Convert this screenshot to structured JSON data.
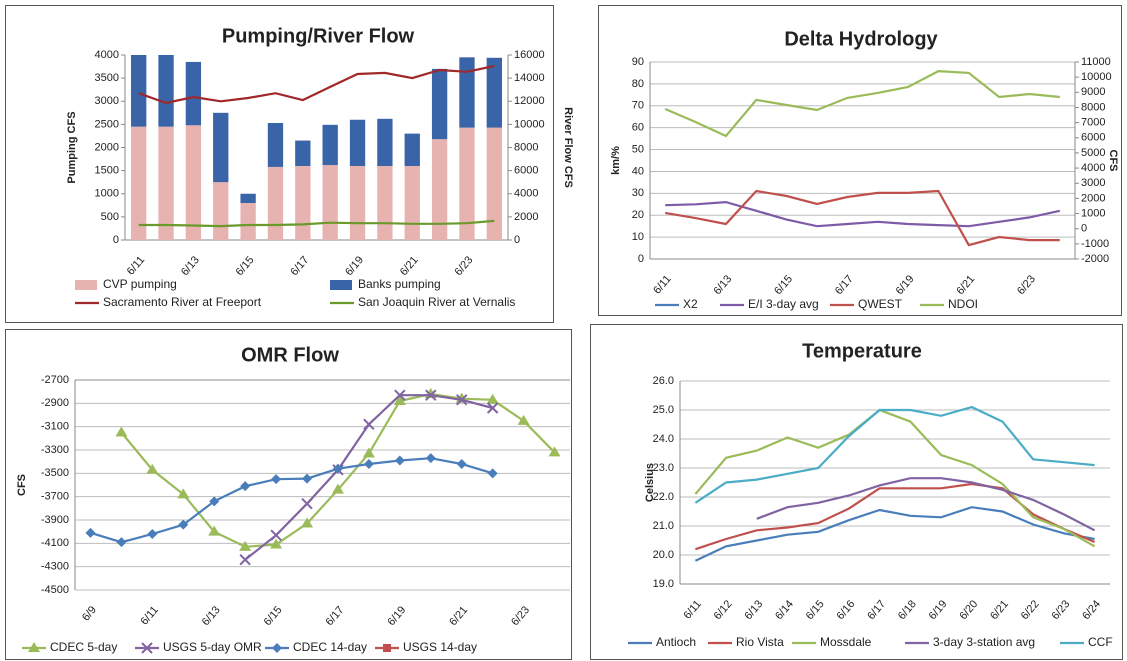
{
  "chart_data": [
    {
      "type": "bar",
      "title": "Pumping/River Flow",
      "ylabel": "Pumping CFS",
      "y2label": "River Flow CFS",
      "grid": false,
      "categories": [
        "6/11",
        null,
        "6/13",
        null,
        "6/15",
        null,
        "6/17",
        null,
        "6/19",
        null,
        "6/21",
        null,
        "6/23",
        null
      ],
      "ylim": [
        0,
        4000
      ],
      "yticks": [
        0,
        500,
        1000,
        1500,
        2000,
        2500,
        3000,
        3500,
        4000
      ],
      "y2lim": [
        0,
        16000
      ],
      "y2ticks": [
        0,
        2000,
        4000,
        6000,
        8000,
        10000,
        12000,
        14000,
        16000
      ],
      "series": [
        {
          "name": "CVP pumping",
          "type": "bar",
          "color": "#e6b3b1",
          "values": [
            2450,
            2450,
            2480,
            1250,
            800,
            1580,
            1600,
            1620,
            1600,
            1600,
            1600,
            2180,
            2430,
            2430
          ]
        },
        {
          "name": "Banks pumping",
          "type": "bar",
          "color": "#3a64a8",
          "values": [
            1550,
            1550,
            1370,
            1500,
            200,
            950,
            550,
            870,
            1000,
            1020,
            700,
            1520,
            1520,
            1510
          ]
        },
        {
          "name": "Sacramento River at Freeport",
          "type": "line",
          "axis": "y2",
          "color": "#a0282a",
          "values": [
            12700,
            11850,
            12370,
            12000,
            12280,
            12700,
            12100,
            13240,
            14360,
            14450,
            14000,
            14700,
            14550,
            15050
          ]
        },
        {
          "name": "San Joaquin River at Vernalis",
          "type": "line",
          "axis": "y2",
          "color": "#6a9a2a",
          "values": [
            1300,
            1300,
            1250,
            1200,
            1300,
            1300,
            1350,
            1500,
            1450,
            1450,
            1400,
            1400,
            1450,
            1650
          ]
        }
      ]
    },
    {
      "type": "line",
      "title": "Delta Hydrology",
      "ylabel": "km/%",
      "y2label": "CFS",
      "grid": true,
      "categories": [
        "6/11",
        null,
        "6/13",
        null,
        "6/15",
        null,
        "6/17",
        null,
        "6/19",
        null,
        "6/21",
        null,
        "6/23",
        null
      ],
      "ylim": [
        0,
        90
      ],
      "yticks": [
        0,
        10,
        20,
        30,
        40,
        50,
        60,
        70,
        80,
        90
      ],
      "y2lim": [
        -2000,
        11000
      ],
      "y2ticks": [
        -2000,
        -1000,
        0,
        1000,
        2000,
        3000,
        4000,
        5000,
        6000,
        7000,
        8000,
        9000,
        10000,
        11000
      ],
      "series": [
        {
          "name": "X2",
          "type": "line",
          "color": "#4a7ebb",
          "values": [
            null,
            null,
            null,
            null,
            null,
            null,
            null,
            null,
            null,
            null,
            null,
            null,
            null,
            null
          ]
        },
        {
          "name": "E/I 3-day avg",
          "type": "line",
          "color": "#7d5ba6",
          "values": [
            24.6,
            25,
            26,
            22,
            18,
            15,
            16,
            17,
            16,
            15.5,
            15,
            17,
            19,
            22
          ]
        },
        {
          "name": "QWEST",
          "type": "line",
          "axis": "y2",
          "color": "#c0504d",
          "values": [
            1040,
            700,
            310,
            2490,
            2160,
            1630,
            2090,
            2360,
            2360,
            2490,
            -1080,
            -550,
            -750,
            -750
          ]
        },
        {
          "name": "NDOI",
          "type": "line",
          "axis": "y2",
          "color": "#9bbb59",
          "values": [
            7900,
            7040,
            6120,
            8500,
            8160,
            7830,
            8630,
            8960,
            9350,
            10400,
            10280,
            8690,
            8890,
            8690
          ]
        }
      ]
    },
    {
      "type": "line",
      "title": "OMR Flow",
      "ylabel": "CFS",
      "grid": true,
      "categories": [
        "6/9",
        null,
        "6/11",
        null,
        "6/13",
        null,
        "6/15",
        null,
        "6/17",
        null,
        "6/19",
        null,
        "6/21",
        null,
        "6/23",
        null
      ],
      "ylim": [
        -4500,
        -2700
      ],
      "yticks": [
        -4500,
        -4300,
        -4100,
        -3900,
        -3700,
        -3500,
        -3300,
        -3100,
        -2900,
        -2700
      ],
      "series": [
        {
          "name": "CDEC 5-day",
          "type": "line",
          "marker": "triangle",
          "color": "#9bbb59",
          "values": [
            null,
            -3150,
            -3470,
            -3680,
            -4000,
            -4130,
            -4110,
            -3930,
            -3640,
            -3330,
            -2880,
            -2820,
            -2860,
            -2870,
            -3050,
            -3320
          ]
        },
        {
          "name": "USGS 5-day OMR",
          "type": "line",
          "marker": "cross",
          "color": "#8064a2",
          "values": [
            null,
            null,
            null,
            null,
            null,
            -4240,
            -4030,
            -3760,
            -3470,
            -3080,
            -2830,
            -2830,
            -2870,
            -2940,
            null,
            null
          ]
        },
        {
          "name": "CDEC 14-day",
          "type": "line",
          "marker": "diamond",
          "color": "#4a7ebb",
          "values": [
            -4010,
            -4090,
            -4020,
            -3940,
            -3740,
            -3610,
            -3550,
            -3545,
            -3460,
            -3420,
            -3390,
            -3370,
            -3420,
            -3500,
            null,
            null
          ]
        },
        {
          "name": "USGS 14-day",
          "type": "line",
          "marker": "square",
          "color": "#c0504d",
          "values": [
            null,
            null,
            null,
            null,
            null,
            null,
            null,
            null,
            null,
            null,
            null,
            null,
            null,
            null,
            null,
            null
          ]
        }
      ]
    },
    {
      "type": "line",
      "title": "Temperature",
      "ylabel": "Celsius",
      "grid": true,
      "categories": [
        "6/11",
        "6/12",
        "6/13",
        "6/14",
        "6/15",
        "6/16",
        "6/17",
        "6/18",
        "6/19",
        "6/20",
        "6/21",
        "6/22",
        "6/23",
        "6/24"
      ],
      "ylim": [
        19,
        26
      ],
      "yticks": [
        {
          "value": 19,
          "label": "19.0"
        },
        {
          "value": 20,
          "label": "20.0"
        },
        {
          "value": 21,
          "label": "21.0"
        },
        {
          "value": 22,
          "label": "22.0"
        },
        {
          "value": 23,
          "label": "23.0"
        },
        {
          "value": 24,
          "label": "24.0"
        },
        {
          "value": 25,
          "label": "25.0"
        },
        {
          "value": 26,
          "label": "26.0"
        }
      ],
      "series": [
        {
          "name": "Antioch",
          "type": "line",
          "color": "#4a7ebb",
          "values": [
            19.8,
            20.3,
            20.5,
            20.7,
            20.8,
            21.2,
            21.55,
            21.35,
            21.3,
            21.65,
            21.5,
            21.05,
            20.75,
            20.55
          ]
        },
        {
          "name": "Rio Vista",
          "type": "line",
          "color": "#c0504d",
          "values": [
            20.2,
            20.55,
            20.85,
            20.95,
            21.1,
            21.6,
            22.3,
            22.3,
            22.3,
            22.45,
            22.3,
            21.4,
            20.9,
            20.45
          ]
        },
        {
          "name": "Mossdale",
          "type": "line",
          "color": "#9bbb59",
          "values": [
            22.1,
            23.35,
            23.6,
            24.05,
            23.7,
            24.15,
            25.0,
            24.6,
            23.45,
            23.1,
            22.45,
            21.3,
            20.9,
            20.3
          ]
        },
        {
          "name": "3-day 3-station avg",
          "type": "line",
          "color": "#8064a2",
          "values": [
            null,
            null,
            21.25,
            21.65,
            21.8,
            22.05,
            22.4,
            22.65,
            22.65,
            22.5,
            22.25,
            21.9,
            21.4,
            20.85
          ]
        },
        {
          "name": "CCF",
          "type": "line",
          "color": "#4bacc6",
          "values": [
            21.8,
            22.5,
            22.6,
            22.8,
            23.0,
            24.1,
            25.0,
            25.0,
            24.8,
            25.1,
            24.6,
            23.3,
            23.2,
            23.1
          ]
        }
      ]
    }
  ]
}
